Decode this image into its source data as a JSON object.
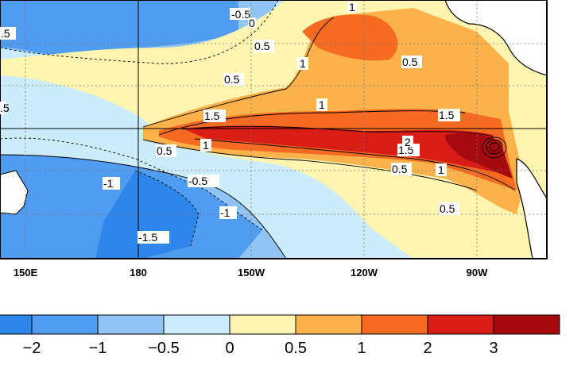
{
  "map": {
    "longitude_labels": [
      "150E",
      "180",
      "150W",
      "120W",
      "90W"
    ],
    "contour_labels": [
      "-0.5",
      "0",
      "0.5",
      "1",
      "1.5",
      "2",
      "-1",
      "-1.5",
      ".5",
      ".5"
    ],
    "land_color": "#ffffff",
    "coastline_color": "#000000"
  },
  "colorbar": {
    "tick_labels": [
      "−2",
      "−1",
      "−0.5",
      "0",
      "0.5",
      "1",
      "2",
      "3"
    ],
    "colors": [
      "#2f86ea",
      "#4f9cf0",
      "#8fc4f4",
      "#ccecfb",
      "#fff5b0",
      "#fbb24a",
      "#f46b21",
      "#d81c16",
      "#a50a0f"
    ]
  }
}
